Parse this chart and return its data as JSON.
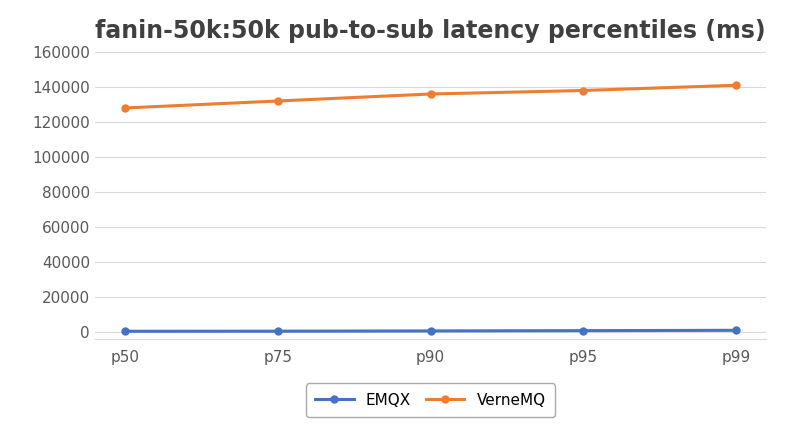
{
  "title": "fanin-50k:50k pub-to-sub latency percentiles (ms)",
  "categories": [
    "p50",
    "p75",
    "p90",
    "p95",
    "p99"
  ],
  "series": [
    {
      "name": "EMQX",
      "values": [
        150,
        200,
        350,
        500,
        700
      ],
      "color": "#4472C4",
      "marker": "o",
      "linewidth": 2.2
    },
    {
      "name": "VerneMQ",
      "values": [
        128000,
        132000,
        136000,
        138000,
        141000
      ],
      "color": "#ED7D31",
      "marker": "o",
      "linewidth": 2.2
    }
  ],
  "ylim": [
    -4000,
    160000
  ],
  "yticks": [
    0,
    20000,
    40000,
    60000,
    80000,
    100000,
    120000,
    140000,
    160000
  ],
  "background_color": "#ffffff",
  "plot_area_color": "#ffffff",
  "grid_color": "#d9d9d9",
  "title_fontsize": 17,
  "tick_fontsize": 11,
  "legend_fontsize": 11
}
